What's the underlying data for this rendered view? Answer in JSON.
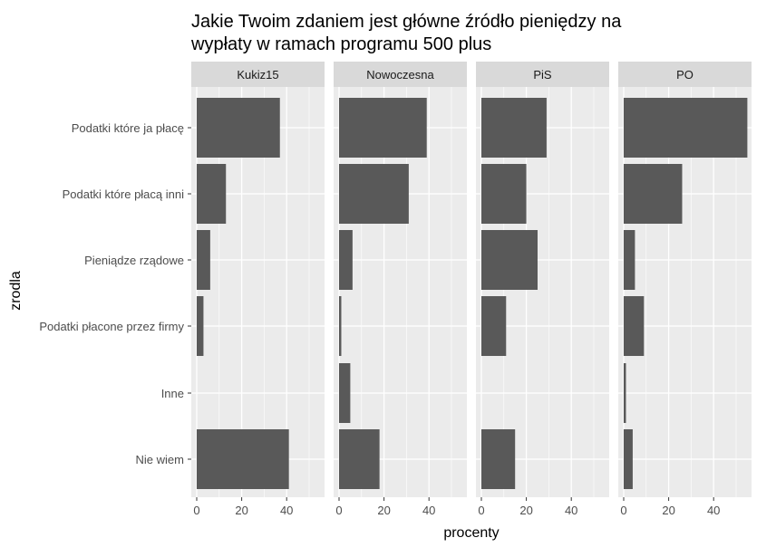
{
  "chart_data": {
    "type": "bar",
    "orientation": "horizontal",
    "title": "Jakie Twoim zdaniem jest główne źródło pieniędzy na wypłaty w ramach programu 500 plus",
    "title_lines": [
      "Jakie Twoim zdaniem jest główne źródło pieniędzy na",
      "wypłaty w ramach programu 500 plus"
    ],
    "xlabel": "procenty",
    "ylabel": "zrodla",
    "xlim": [
      0,
      57
    ],
    "x_ticks": [
      0,
      20,
      40
    ],
    "categories": [
      "Podatki które ja płacę",
      "Podatki które płacą inni",
      "Pieniądze rządowe",
      "Podatki płacone przez firmy",
      "Inne",
      "Nie wiem"
    ],
    "facets": [
      {
        "name": "Kukiz15",
        "values": [
          37,
          13,
          6,
          3,
          0,
          41
        ]
      },
      {
        "name": "Nowoczesna",
        "values": [
          39,
          31,
          6,
          1,
          5,
          18
        ]
      },
      {
        "name": "PiS",
        "values": [
          29,
          20,
          25,
          11,
          0,
          15
        ]
      },
      {
        "name": "PO",
        "values": [
          55,
          26,
          5,
          9,
          1,
          4
        ]
      }
    ],
    "grid": true,
    "colors": {
      "bar": "#595959",
      "panel_bg": "#ebebeb",
      "strip_bg": "#d9d9d9",
      "grid_major": "#ffffff"
    }
  }
}
